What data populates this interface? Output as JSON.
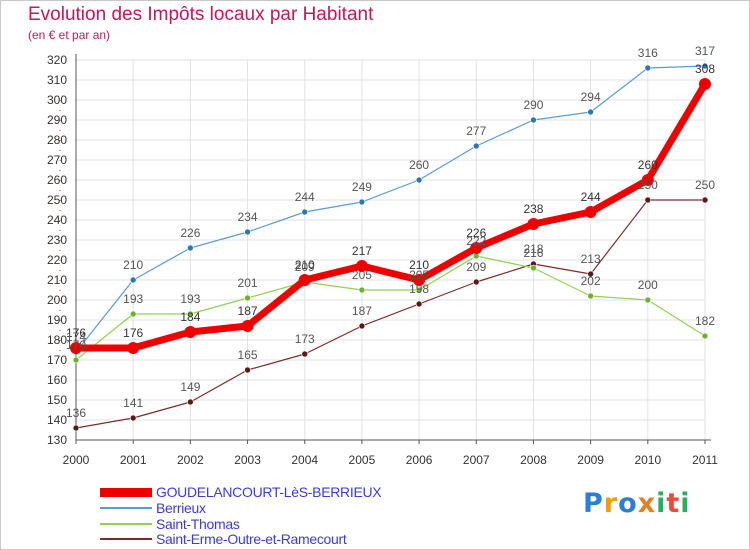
{
  "title": "Evolution des Impôts locaux par Habitant",
  "subtitle": "(en € et par an)",
  "logo": {
    "letters": [
      "P",
      "r",
      "o",
      "x",
      "i",
      "t",
      "i"
    ],
    "colors": [
      "#2a7fd4",
      "#f39c12",
      "#2a7fd4",
      "#e67e22",
      "#27ae60",
      "#e74c3c",
      "#27ae60"
    ]
  },
  "chart_data": {
    "type": "line",
    "x": [
      2000,
      2001,
      2002,
      2003,
      2004,
      2005,
      2006,
      2007,
      2008,
      2009,
      2010,
      2011
    ],
    "x_tick_labels": [
      "2000",
      "2001",
      "2002",
      "2003",
      "2004",
      "2005",
      "2006",
      "2007",
      "2008",
      "2009",
      "2010",
      "2011"
    ],
    "ylim": [
      130,
      320
    ],
    "y_ticks": [
      130,
      140,
      150,
      160,
      170,
      180,
      190,
      200,
      210,
      220,
      230,
      240,
      250,
      260,
      270,
      280,
      290,
      300,
      310,
      320
    ],
    "grid": true,
    "legend_position": "bottom-left",
    "series": [
      {
        "name": "GOUDELANCOURT-LèS-BERRIEUX",
        "color": "#ee0000",
        "markerColor": "#ee0000",
        "labelColor": "#333333",
        "width": 7,
        "marker": 6,
        "values": [
          176,
          176,
          184,
          187,
          210,
          217,
          210,
          226,
          238,
          244,
          260,
          308
        ],
        "labels": [
          "176",
          "176",
          "184",
          "187",
          "210",
          "217",
          "210",
          "226",
          "238",
          "244",
          "260",
          "308"
        ]
      },
      {
        "name": "Berrieux",
        "color": "#5b9bd5",
        "markerColor": "#2e75b6",
        "labelColor": "#555555",
        "width": 1.2,
        "marker": 3,
        "values": [
          174,
          210,
          226,
          234,
          244,
          249,
          260,
          277,
          290,
          294,
          316,
          317
        ],
        "labels": [
          "174",
          "210",
          "226",
          "234",
          "244",
          "249",
          "260",
          "277",
          "290",
          "294",
          "316",
          "317"
        ]
      },
      {
        "name": "Saint-Thomas",
        "color": "#92d050",
        "markerColor": "#70b030",
        "labelColor": "#555555",
        "width": 1.2,
        "marker": 3,
        "values": [
          170,
          193,
          193,
          201,
          209,
          205,
          205,
          222,
          216,
          202,
          200,
          182
        ],
        "labels": [
          "170",
          "193",
          "193",
          "201",
          "209",
          "205",
          "205",
          "222",
          "216",
          "202",
          "200",
          "182"
        ]
      },
      {
        "name": "Saint-Erme-Outre-et-Ramecourt",
        "color": "#7b2c2c",
        "markerColor": "#5a1a1a",
        "labelColor": "#555555",
        "width": 1.2,
        "marker": 3,
        "values": [
          136,
          141,
          149,
          165,
          173,
          187,
          198,
          209,
          218,
          213,
          250,
          250
        ],
        "labels": [
          "136",
          "141",
          "149",
          "165",
          "173",
          "187",
          "198",
          "209",
          "218",
          "213",
          "250",
          "250"
        ]
      }
    ]
  }
}
